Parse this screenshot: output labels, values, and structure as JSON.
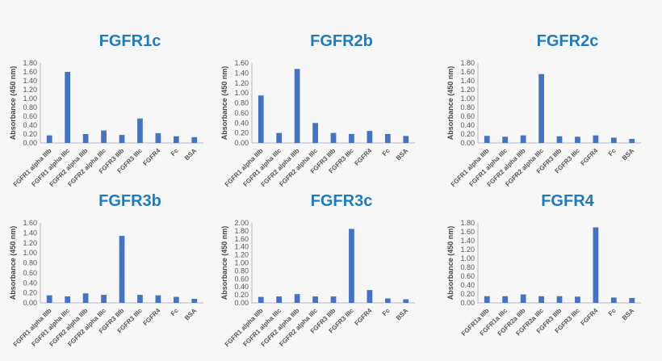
{
  "colors": {
    "bar": "#4472c4",
    "title": "#1f7bc0"
  },
  "chart_data": [
    {
      "type": "bar",
      "title": "FGFR1c",
      "ylabel": "Absorbance (450 nm)",
      "ylim": [
        0,
        1.8
      ],
      "yticks": [
        "0.00",
        "0.20",
        "0.40",
        "0.60",
        "0.80",
        "1.00",
        "1.20",
        "1.40",
        "1.60",
        "1.80"
      ],
      "categories": [
        "FGFR1 alpha IIIb",
        "FGFR1 alpha IIIc",
        "FGFR2 alpha IIIb",
        "FGFR2 alpha IIIc",
        "FGFR3 IIIb",
        "FGFR3 IIIc",
        "FGFR4",
        "Fc",
        "BSA"
      ],
      "values": [
        0.17,
        1.6,
        0.2,
        0.28,
        0.18,
        0.55,
        0.22,
        0.15,
        0.13
      ]
    },
    {
      "type": "bar",
      "title": "FGFR2b",
      "ylabel": "Absorbance (450 nm)",
      "ylim": [
        0,
        1.6
      ],
      "yticks": [
        "0.00",
        "0.20",
        "0.40",
        "0.60",
        "0.80",
        "1.00",
        "1.20",
        "1.40",
        "1.60"
      ],
      "categories": [
        "FGFR1 alpha IIIb",
        "FGFR1 alpha IIIc",
        "FGFR2 alpha IIIb",
        "FGFR2 alpha IIIc",
        "FGFR3 IIIb",
        "FGFR3 IIIc",
        "FGFR4",
        "Fc",
        "BSA"
      ],
      "values": [
        0.95,
        0.2,
        1.48,
        0.4,
        0.2,
        0.18,
        0.24,
        0.18,
        0.14
      ]
    },
    {
      "type": "bar",
      "title": "FGFR2c",
      "ylabel": "Absorbance (450 nm)",
      "ylim": [
        0,
        1.8
      ],
      "yticks": [
        "0.00",
        "0.20",
        "0.40",
        "0.60",
        "0.80",
        "1.00",
        "1.20",
        "1.40",
        "1.60",
        "1.80"
      ],
      "categories": [
        "FGFR1 alpha IIIb",
        "FGFR1 alpha IIIc",
        "FGFR2 alpha IIIb",
        "FGFR2 alpha IIIc",
        "FGFR3 IIIb",
        "FGFR3 IIIc",
        "FGFR4",
        "Fc",
        "BSA"
      ],
      "values": [
        0.16,
        0.14,
        0.17,
        1.55,
        0.15,
        0.14,
        0.17,
        0.12,
        0.09
      ]
    },
    {
      "type": "bar",
      "title": "FGFR3b",
      "ylabel": "Absorbance (450 nm)",
      "ylim": [
        0,
        1.6
      ],
      "yticks": [
        "0.00",
        "0.20",
        "0.40",
        "0.60",
        "0.80",
        "1.00",
        "1.20",
        "1.40",
        "1.60"
      ],
      "categories": [
        "FGFR1 alpha IIIb",
        "FGFR1 alpha IIIc",
        "FGFR2 alpha IIIb",
        "FGFR2 alpha IIIc",
        "FGFR3 IIIb",
        "FGFR3 IIIc",
        "FGFR4",
        "Fc",
        "BSA"
      ],
      "values": [
        0.15,
        0.13,
        0.19,
        0.16,
        1.34,
        0.16,
        0.15,
        0.12,
        0.08
      ]
    },
    {
      "type": "bar",
      "title": "FGFR3c",
      "ylabel": "Absorbance (450 nm)",
      "ylim": [
        0,
        2.0
      ],
      "yticks": [
        "0.00",
        "0.20",
        "0.40",
        "0.60",
        "0.80",
        "1.00",
        "1.20",
        "1.40",
        "1.60",
        "1.80",
        "2.00"
      ],
      "categories": [
        "FGFR1 alpha IIIb",
        "FGFR1 alpha IIIc",
        "FGFR2 alpha IIIb",
        "FGFR2 alpha IIIc",
        "FGFR3 IIIb",
        "FGFR3 IIIc",
        "FGFR4",
        "Fc",
        "BSA"
      ],
      "values": [
        0.15,
        0.16,
        0.22,
        0.16,
        0.16,
        1.85,
        0.32,
        0.11,
        0.09
      ]
    },
    {
      "type": "bar",
      "title": "FGFR4",
      "ylabel": "Absorbance (450 nm)",
      "ylim": [
        0,
        1.8
      ],
      "yticks": [
        "0.00",
        "0.20",
        "0.40",
        "0.60",
        "0.80",
        "1.00",
        "1.20",
        "1.40",
        "1.60",
        "1.80"
      ],
      "categories": [
        "FGFR1a IIIb",
        "FGFR1a IIIc",
        "FGFR2a IIIb",
        "FGFR2a IIIc",
        "FGFR3 IIIb",
        "FGFR3 IIIc",
        "FGFR4",
        "Fc",
        "BSA"
      ],
      "values": [
        0.15,
        0.15,
        0.19,
        0.15,
        0.15,
        0.14,
        1.7,
        0.12,
        0.11
      ]
    }
  ]
}
